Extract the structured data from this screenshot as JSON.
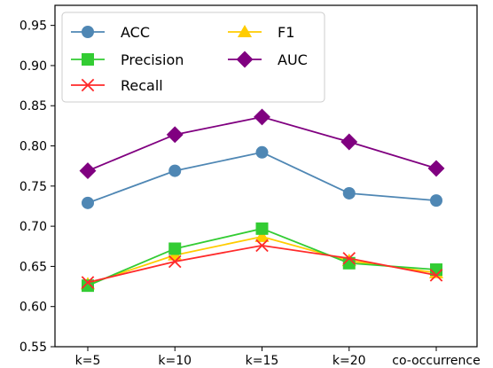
{
  "chart_data": {
    "type": "line",
    "categories": [
      "k=5",
      "k=10",
      "k=15",
      "k=20",
      "co-occurrence"
    ],
    "series": [
      {
        "name": "ACC",
        "values": [
          0.729,
          0.769,
          0.792,
          0.741,
          0.732
        ],
        "color": "#4f87b4",
        "marker": "circle"
      },
      {
        "name": "Precision",
        "values": [
          0.626,
          0.672,
          0.697,
          0.654,
          0.646
        ],
        "color": "#33cc33",
        "marker": "square"
      },
      {
        "name": "Recall",
        "values": [
          0.63,
          0.656,
          0.676,
          0.66,
          0.639
        ],
        "color": "#ff2a2a",
        "marker": "x"
      },
      {
        "name": "F1",
        "values": [
          0.628,
          0.664,
          0.687,
          0.657,
          0.642
        ],
        "color": "#ffcc00",
        "marker": "triangle"
      },
      {
        "name": "AUC",
        "values": [
          0.769,
          0.814,
          0.836,
          0.805,
          0.772
        ],
        "color": "#800080",
        "marker": "diamond"
      }
    ],
    "yticks": [
      "0.55",
      "0.60",
      "0.65",
      "0.70",
      "0.75",
      "0.80",
      "0.85",
      "0.90",
      "0.95"
    ],
    "ylim": [
      0.55,
      0.975
    ],
    "grid": false,
    "legend_position": "top-left",
    "title": "",
    "xlabel": "",
    "ylabel": ""
  }
}
